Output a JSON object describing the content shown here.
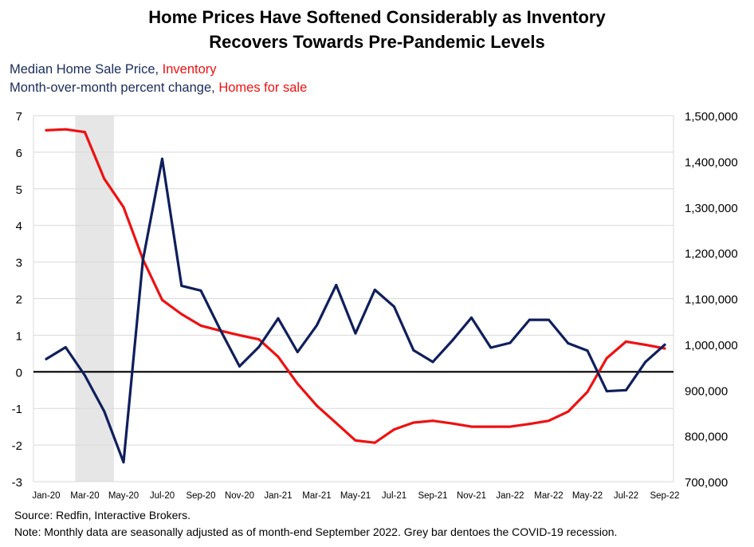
{
  "title_line1": "Home Prices Have Softened Considerably as Inventory",
  "title_line2": "Recovers Towards Pre-Pandemic Levels",
  "legend": {
    "left_series": "Median Home Sale Price",
    "sep1": ", ",
    "right_series": "Inventory",
    "left_unit": "Month-over-month percent change",
    "sep2": ", ",
    "right_unit": "Homes for sale"
  },
  "source": "Source: Redfin, Interactive Brokers.",
  "note": "Note: Monthly data are seasonally adjusted as of month-end September 2022. Grey bar dentoes the COVID-19 recession.",
  "colors": {
    "price": "#0f1f5c",
    "inventory": "#ee1111",
    "recession": "#e6e6e6",
    "grid": "#d9d9d9"
  },
  "chart_data": {
    "type": "line",
    "title": "Home Prices Have Softened Considerably as Inventory Recovers Towards Pre-Pandemic Levels",
    "x": [
      "Jan-20",
      "Feb-20",
      "Mar-20",
      "Apr-20",
      "May-20",
      "Jun-20",
      "Jul-20",
      "Aug-20",
      "Sep-20",
      "Oct-20",
      "Nov-20",
      "Dec-20",
      "Jan-21",
      "Feb-21",
      "Mar-21",
      "Apr-21",
      "May-21",
      "Jun-21",
      "Jul-21",
      "Aug-21",
      "Sep-21",
      "Oct-21",
      "Nov-21",
      "Dec-21",
      "Jan-22",
      "Feb-22",
      "Mar-22",
      "Apr-22",
      "May-22",
      "Jun-22",
      "Jul-22",
      "Aug-22",
      "Sep-22"
    ],
    "x_tick_labels": [
      "Jan-20",
      "Mar-20",
      "May-20",
      "Jul-20",
      "Sep-20",
      "Nov-20",
      "Jan-21",
      "Mar-21",
      "May-21",
      "Jul-21",
      "Sep-21",
      "Nov-21",
      "Jan-22",
      "Mar-22",
      "May-22",
      "Jul-22",
      "Sep-22"
    ],
    "recession": {
      "start": "Mar-20",
      "end": "Apr-20"
    },
    "y_left": {
      "label": "Month-over-month percent change",
      "lim": [
        -3,
        7
      ],
      "ticks": [
        -3,
        -2,
        -1,
        0,
        1,
        2,
        3,
        4,
        5,
        6,
        7
      ]
    },
    "y_right": {
      "label": "Homes for sale",
      "lim": [
        700000,
        1500000
      ],
      "ticks": [
        700000,
        800000,
        900000,
        1000000,
        1100000,
        1200000,
        1300000,
        1400000,
        1500000
      ],
      "tick_labels": [
        "700,000",
        "800,000",
        "900,000",
        "1,000,000",
        "1,100,000",
        "1,200,000",
        "1,300,000",
        "1,400,000",
        "1,500,000"
      ]
    },
    "series": [
      {
        "name": "Median Home Sale Price",
        "axis": "left",
        "color": "#0f1f5c",
        "values": [
          0.35,
          0.67,
          -0.1,
          -1.08,
          -2.47,
          3.05,
          5.82,
          2.35,
          2.22,
          1.15,
          0.15,
          0.68,
          1.46,
          0.54,
          1.27,
          2.37,
          1.05,
          2.24,
          1.78,
          0.59,
          0.27,
          0.85,
          1.48,
          0.66,
          0.79,
          1.42,
          1.42,
          0.78,
          0.58,
          -0.53,
          -0.5,
          0.27,
          0.74
        ]
      },
      {
        "name": "Inventory",
        "axis": "right",
        "color": "#ee1111",
        "values": [
          1468000,
          1470000,
          1464000,
          1362000,
          1300000,
          1186000,
          1097000,
          1066000,
          1041000,
          1030000,
          1020000,
          1011000,
          973000,
          914000,
          866000,
          828000,
          790000,
          785000,
          814000,
          829000,
          833000,
          827000,
          820000,
          820000,
          820000,
          826000,
          833000,
          853000,
          896000,
          970000,
          1006000,
          999000,
          991000
        ]
      }
    ]
  }
}
